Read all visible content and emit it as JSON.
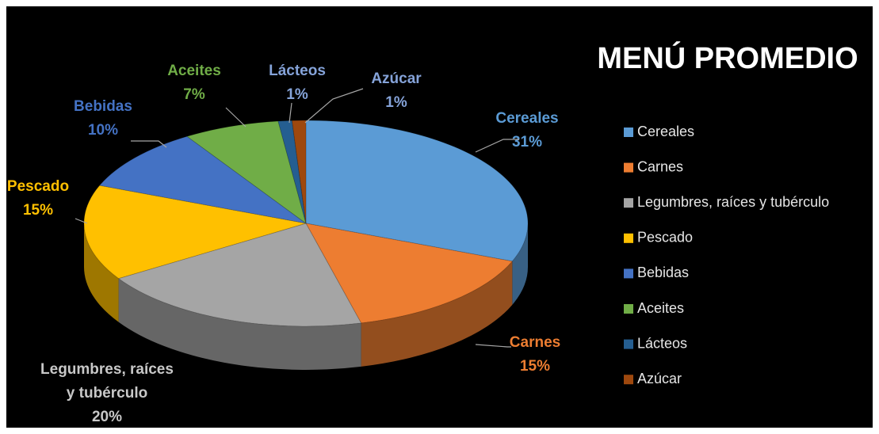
{
  "chart_data": {
    "type": "pie",
    "title": "MENÚ PROMEDIO",
    "categories": [
      "Cereales",
      "Carnes",
      "Legumbres, raíces y tubérculo",
      "Pescado",
      "Bebidas",
      "Aceites",
      "Lácteos",
      "Azúcar"
    ],
    "values": [
      31,
      15,
      20,
      15,
      10,
      7,
      1,
      1
    ],
    "value_labels": [
      "31%",
      "15%",
      "20%",
      "15%",
      "10%",
      "7%",
      "1%",
      "1%"
    ],
    "colors": [
      "#5b9bd5",
      "#ed7d31",
      "#a5a5a5",
      "#ffc000",
      "#4472c4",
      "#70ad47",
      "#255e91",
      "#9e480e"
    ],
    "legend": "right"
  }
}
